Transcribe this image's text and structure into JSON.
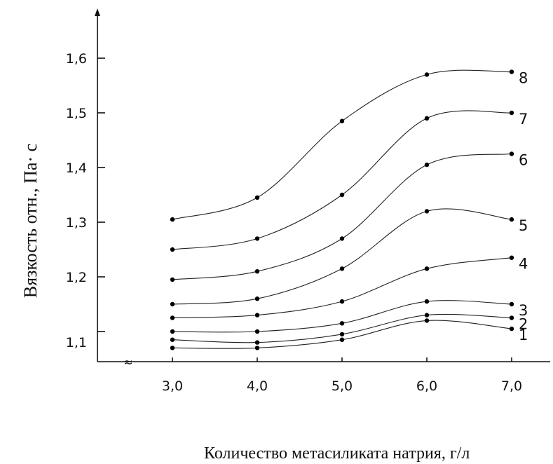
{
  "chart_data": {
    "type": "line",
    "title": "",
    "xlabel": "Количество метасиликата натрия, г/л",
    "ylabel": "Вязкость  отн., Па· с",
    "x_ticks": [
      "3,0",
      "4,0",
      "5,0",
      "6,0",
      "7,0"
    ],
    "y_ticks": [
      "1,1",
      "1,2",
      "1,3",
      "1,4",
      "1,5",
      "1,6"
    ],
    "y_tick_values": [
      1.1,
      1.2,
      1.3,
      1.4,
      1.5,
      1.6
    ],
    "x_tick_values": [
      3.0,
      4.0,
      5.0,
      6.0,
      7.0
    ],
    "x_break_mark": "≈",
    "grid": false,
    "x": [
      3.0,
      4.0,
      5.0,
      6.0,
      7.0
    ],
    "series": [
      {
        "label": "1",
        "values": [
          1.07,
          1.07,
          1.085,
          1.12,
          1.105
        ]
      },
      {
        "label": "2",
        "values": [
          1.085,
          1.08,
          1.095,
          1.13,
          1.125
        ]
      },
      {
        "label": "3",
        "values": [
          1.1,
          1.1,
          1.115,
          1.155,
          1.15
        ]
      },
      {
        "label": "4",
        "values": [
          1.125,
          1.13,
          1.155,
          1.215,
          1.235
        ]
      },
      {
        "label": "5",
        "values": [
          1.15,
          1.16,
          1.215,
          1.32,
          1.305
        ]
      },
      {
        "label": "6",
        "values": [
          1.195,
          1.21,
          1.27,
          1.405,
          1.425
        ]
      },
      {
        "label": "7",
        "values": [
          1.25,
          1.27,
          1.35,
          1.49,
          1.5
        ]
      },
      {
        "label": "8",
        "values": [
          1.305,
          1.345,
          1.485,
          1.57,
          1.575
        ]
      }
    ]
  }
}
